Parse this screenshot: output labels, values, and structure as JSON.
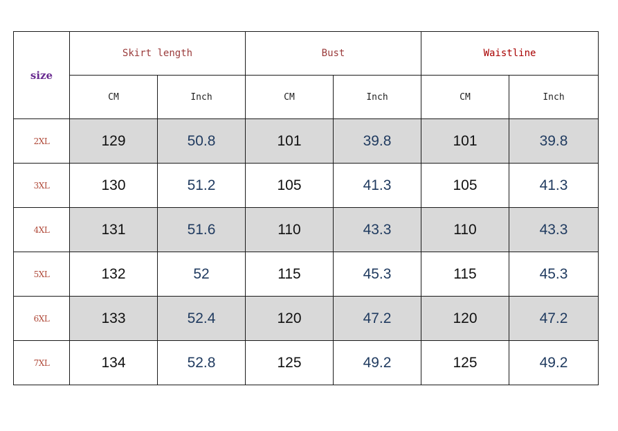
{
  "table": {
    "size_header": "size",
    "groups": [
      {
        "label": "Skirt length",
        "color": "#9a3a3a"
      },
      {
        "label": "Bust",
        "color": "#9a3a3a"
      },
      {
        "label": "Waistline",
        "color": "#a80000"
      }
    ],
    "units": [
      "CM",
      "Inch",
      "CM",
      "Inch",
      "CM",
      "Inch"
    ],
    "shaded_color": "#d9d9d9",
    "rows": [
      {
        "size": "2XL",
        "skirt_cm": "129",
        "skirt_in": "50.8",
        "bust_cm": "101",
        "bust_in": "39.8",
        "waist_cm": "101",
        "waist_in": "39.8",
        "shaded": true
      },
      {
        "size": "3XL",
        "skirt_cm": "130",
        "skirt_in": "51.2",
        "bust_cm": "105",
        "bust_in": "41.3",
        "waist_cm": "105",
        "waist_in": "41.3",
        "shaded": false
      },
      {
        "size": "4XL",
        "skirt_cm": "131",
        "skirt_in": "51.6",
        "bust_cm": "110",
        "bust_in": "43.3",
        "waist_cm": "110",
        "waist_in": "43.3",
        "shaded": true
      },
      {
        "size": "5XL",
        "skirt_cm": "132",
        "skirt_in": "52",
        "bust_cm": "115",
        "bust_in": "45.3",
        "waist_cm": "115",
        "waist_in": "45.3",
        "shaded": false
      },
      {
        "size": "6XL",
        "skirt_cm": "133",
        "skirt_in": "52.4",
        "bust_cm": "120",
        "bust_in": "47.2",
        "waist_cm": "120",
        "waist_in": "47.2",
        "shaded": true
      },
      {
        "size": "7XL",
        "skirt_cm": "134",
        "skirt_in": "52.8",
        "bust_cm": "125",
        "bust_in": "49.2",
        "waist_cm": "125",
        "waist_in": "49.2",
        "shaded": false
      }
    ]
  }
}
